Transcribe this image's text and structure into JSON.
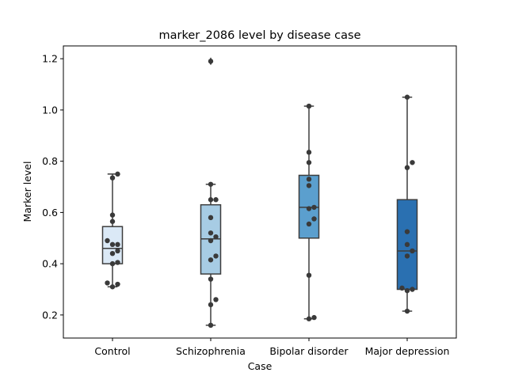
{
  "chart_data": {
    "type": "box",
    "title": "marker_2086 level by disease case",
    "xlabel": "Case",
    "ylabel": "Marker level",
    "ylim": [
      0.11,
      1.25
    ],
    "yticks": [
      "0.2",
      "0.4",
      "0.6",
      "0.8",
      "1.0",
      "1.2"
    ],
    "grid": false,
    "legend": "none",
    "categories": [
      "Control",
      "Schizophrenia",
      "Bipolar disorder",
      "Major depression"
    ],
    "colors": [
      "#dbe9f6",
      "#a7cce4",
      "#5b9fce",
      "#2a70b1"
    ],
    "boxes": [
      {
        "q1": 0.4,
        "median": 0.46,
        "q3": 0.545,
        "whisker_low": 0.31,
        "whisker_high": 0.75,
        "outliers": []
      },
      {
        "q1": 0.36,
        "median": 0.497,
        "q3": 0.63,
        "whisker_low": 0.16,
        "whisker_high": 0.71,
        "outliers": [
          1.19
        ]
      },
      {
        "q1": 0.5,
        "median": 0.62,
        "q3": 0.745,
        "whisker_low": 0.185,
        "whisker_high": 1.015,
        "outliers": []
      },
      {
        "q1": 0.3,
        "median": 0.45,
        "q3": 0.65,
        "whisker_low": 0.215,
        "whisker_high": 1.05,
        "outliers": []
      }
    ],
    "points": [
      [
        0.75,
        0.735,
        0.59,
        0.565,
        0.49,
        0.475,
        0.475,
        0.45,
        0.44,
        0.405,
        0.4,
        0.325,
        0.32,
        0.31
      ],
      [
        0.71,
        0.65,
        0.65,
        0.58,
        0.52,
        0.505,
        0.49,
        0.43,
        0.415,
        0.34,
        0.26,
        0.24,
        0.16,
        1.19
      ],
      [
        1.015,
        0.835,
        0.795,
        0.73,
        0.705,
        0.62,
        0.615,
        0.575,
        0.555,
        0.355,
        0.19,
        0.185
      ],
      [
        1.05,
        0.795,
        0.775,
        0.525,
        0.475,
        0.45,
        0.43,
        0.305,
        0.3,
        0.295,
        0.215
      ]
    ]
  }
}
